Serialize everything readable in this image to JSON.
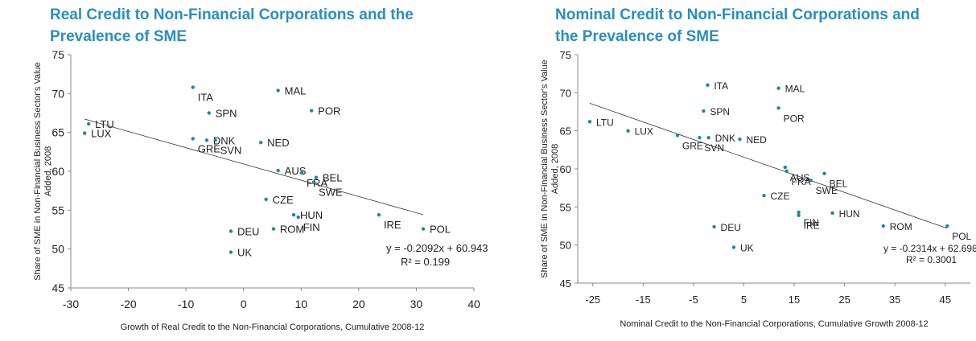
{
  "chart_data": [
    {
      "type": "scatter",
      "title": [
        "Real Credit to Non-Financial Corporations and the",
        "Prevalence of SME"
      ],
      "xlabel": "Growth of Real Credit to the Non-Financial Corporations, Cumulative 2008-12",
      "ylabel": [
        "Share of SME in Non-Financial Business Sector's Value",
        "Added, 2008"
      ],
      "color": "#1a8a9e",
      "categories": [
        "LTU",
        "LUX",
        "ITA",
        "MAL",
        "SPN",
        "POR",
        "GRE",
        "DNK",
        "SVN",
        "NED",
        "AUS",
        "FRA",
        "BEL",
        "SWE",
        "CZE",
        "HUN",
        "FIN",
        "ROM",
        "IRE",
        "POL",
        "DEU",
        "UK"
      ],
      "x": [
        -26.9,
        -27.6,
        -8.8,
        6.0,
        -6.0,
        11.8,
        -8.8,
        -6.4,
        -4.9,
        3.0,
        6.0,
        10.1,
        12.6,
        12.2,
        3.9,
        8.7,
        9.5,
        5.2,
        23.5,
        31.2,
        -2.2,
        -2.2
      ],
      "values": [
        66.1,
        64.9,
        70.8,
        70.4,
        67.5,
        67.8,
        64.2,
        64.0,
        64.0,
        63.7,
        60.1,
        59.8,
        59.2,
        58.6,
        56.4,
        54.4,
        54.1,
        52.6,
        54.4,
        52.6,
        52.3,
        49.6
      ],
      "xlim": [
        -30,
        40
      ],
      "xticks": [
        -30,
        -20,
        -10,
        0,
        10,
        20,
        30,
        40
      ],
      "ylim": [
        45,
        75
      ],
      "yticks": [
        45,
        50,
        55,
        60,
        65,
        70,
        75
      ],
      "trendline": {
        "slope": -0.2092,
        "intercept": 60.943,
        "label": "y = -0.2092x + 60.943",
        "r2_label": "R² = 0.199"
      }
    },
    {
      "type": "scatter",
      "title": [
        "Nominal Credit to Non-Financial Corporations and",
        "the Prevalence of SME"
      ],
      "xlabel": "Nominal Credit to the Non-Financial Corporations, Cumulative Growth 2008-12",
      "ylabel": [
        "Share of SME in Non-Financial Business Sector's Value",
        "Added, 2008"
      ],
      "color": "#1a8a9e",
      "categories": [
        "LTU",
        "LUX",
        "GRE",
        "SVN",
        "DNK",
        "NED",
        "SPN",
        "ITA",
        "MAL",
        "POR",
        "AUS",
        "FRA",
        "BEL",
        "SWE",
        "CZE",
        "HUN",
        "FIN",
        "ROM",
        "IRE",
        "POL",
        "DEU",
        "UK"
      ],
      "x": [
        -25.6,
        -18.0,
        -8.2,
        -3.8,
        -2.0,
        4.2,
        -3.0,
        -2.2,
        11.9,
        11.9,
        13.2,
        13.5,
        21.0,
        18.3,
        9.0,
        22.6,
        15.9,
        32.7,
        15.9,
        45.4,
        -0.9,
        3.0
      ],
      "values": [
        66.2,
        65.0,
        64.4,
        64.1,
        64.1,
        63.9,
        67.6,
        71.0,
        70.6,
        68.0,
        60.2,
        59.7,
        59.4,
        58.5,
        56.5,
        54.2,
        54.3,
        52.5,
        53.9,
        52.5,
        52.4,
        49.7
      ],
      "xlim": [
        -28,
        50
      ],
      "xticks": [
        -25,
        -15,
        -5,
        5,
        15,
        25,
        35,
        45
      ],
      "ylim": [
        45,
        75
      ],
      "yticks": [
        45,
        50,
        55,
        60,
        65,
        70,
        75
      ],
      "trendline": {
        "slope": -0.2314,
        "intercept": 62.698,
        "label": "y = -0.2314x + 62.698",
        "r2_label": "R² = 0.3001"
      }
    }
  ]
}
